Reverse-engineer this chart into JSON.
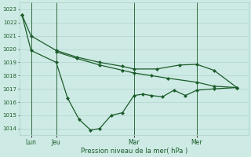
{
  "xlabel": "Pression niveau de la mer( hPa )",
  "background_color": "#ceeae4",
  "grid_color": "#aacfc8",
  "line_color": "#1a5c2a",
  "vline_color": "#2d6e3a",
  "ylim": [
    1013.5,
    1023.5
  ],
  "yticks": [
    1014,
    1015,
    1016,
    1017,
    1018,
    1019,
    1020,
    1021,
    1022,
    1023
  ],
  "xlim": [
    0,
    20
  ],
  "xtick_labels": [
    "Lun",
    "Jeu",
    "Mar",
    "Mer"
  ],
  "xtick_positions": [
    1.0,
    3.2,
    10.0,
    15.5
  ],
  "vline_positions": [
    1.0,
    3.2,
    10.0,
    15.5
  ],
  "series1": {
    "x": [
      0.2,
      1.0,
      3.2,
      5.0,
      7.0,
      9.0,
      10.0,
      12.0,
      14.0,
      15.5,
      17.0,
      19.0
    ],
    "y": [
      1022.6,
      1021.0,
      1019.9,
      1019.4,
      1019.0,
      1018.7,
      1018.5,
      1018.5,
      1018.8,
      1018.85,
      1018.4,
      1017.1
    ]
  },
  "series2": {
    "x": [
      0.2,
      1.0,
      3.2,
      4.2,
      5.2,
      6.2,
      7.0,
      8.0,
      9.0,
      10.0,
      10.8,
      11.5,
      12.5,
      13.5,
      14.5,
      15.5,
      17.0,
      19.0
    ],
    "y": [
      1022.6,
      1019.9,
      1019.0,
      1016.3,
      1014.7,
      1013.9,
      1014.0,
      1015.0,
      1015.2,
      1016.5,
      1016.6,
      1016.5,
      1016.4,
      1016.9,
      1016.5,
      1016.9,
      1017.0,
      1017.1
    ]
  },
  "series3": {
    "x": [
      3.2,
      5.0,
      7.0,
      9.0,
      10.0,
      11.5,
      13.0,
      15.5,
      17.0,
      19.0
    ],
    "y": [
      1019.8,
      1019.3,
      1018.8,
      1018.4,
      1018.2,
      1018.0,
      1017.8,
      1017.5,
      1017.2,
      1017.1
    ]
  }
}
